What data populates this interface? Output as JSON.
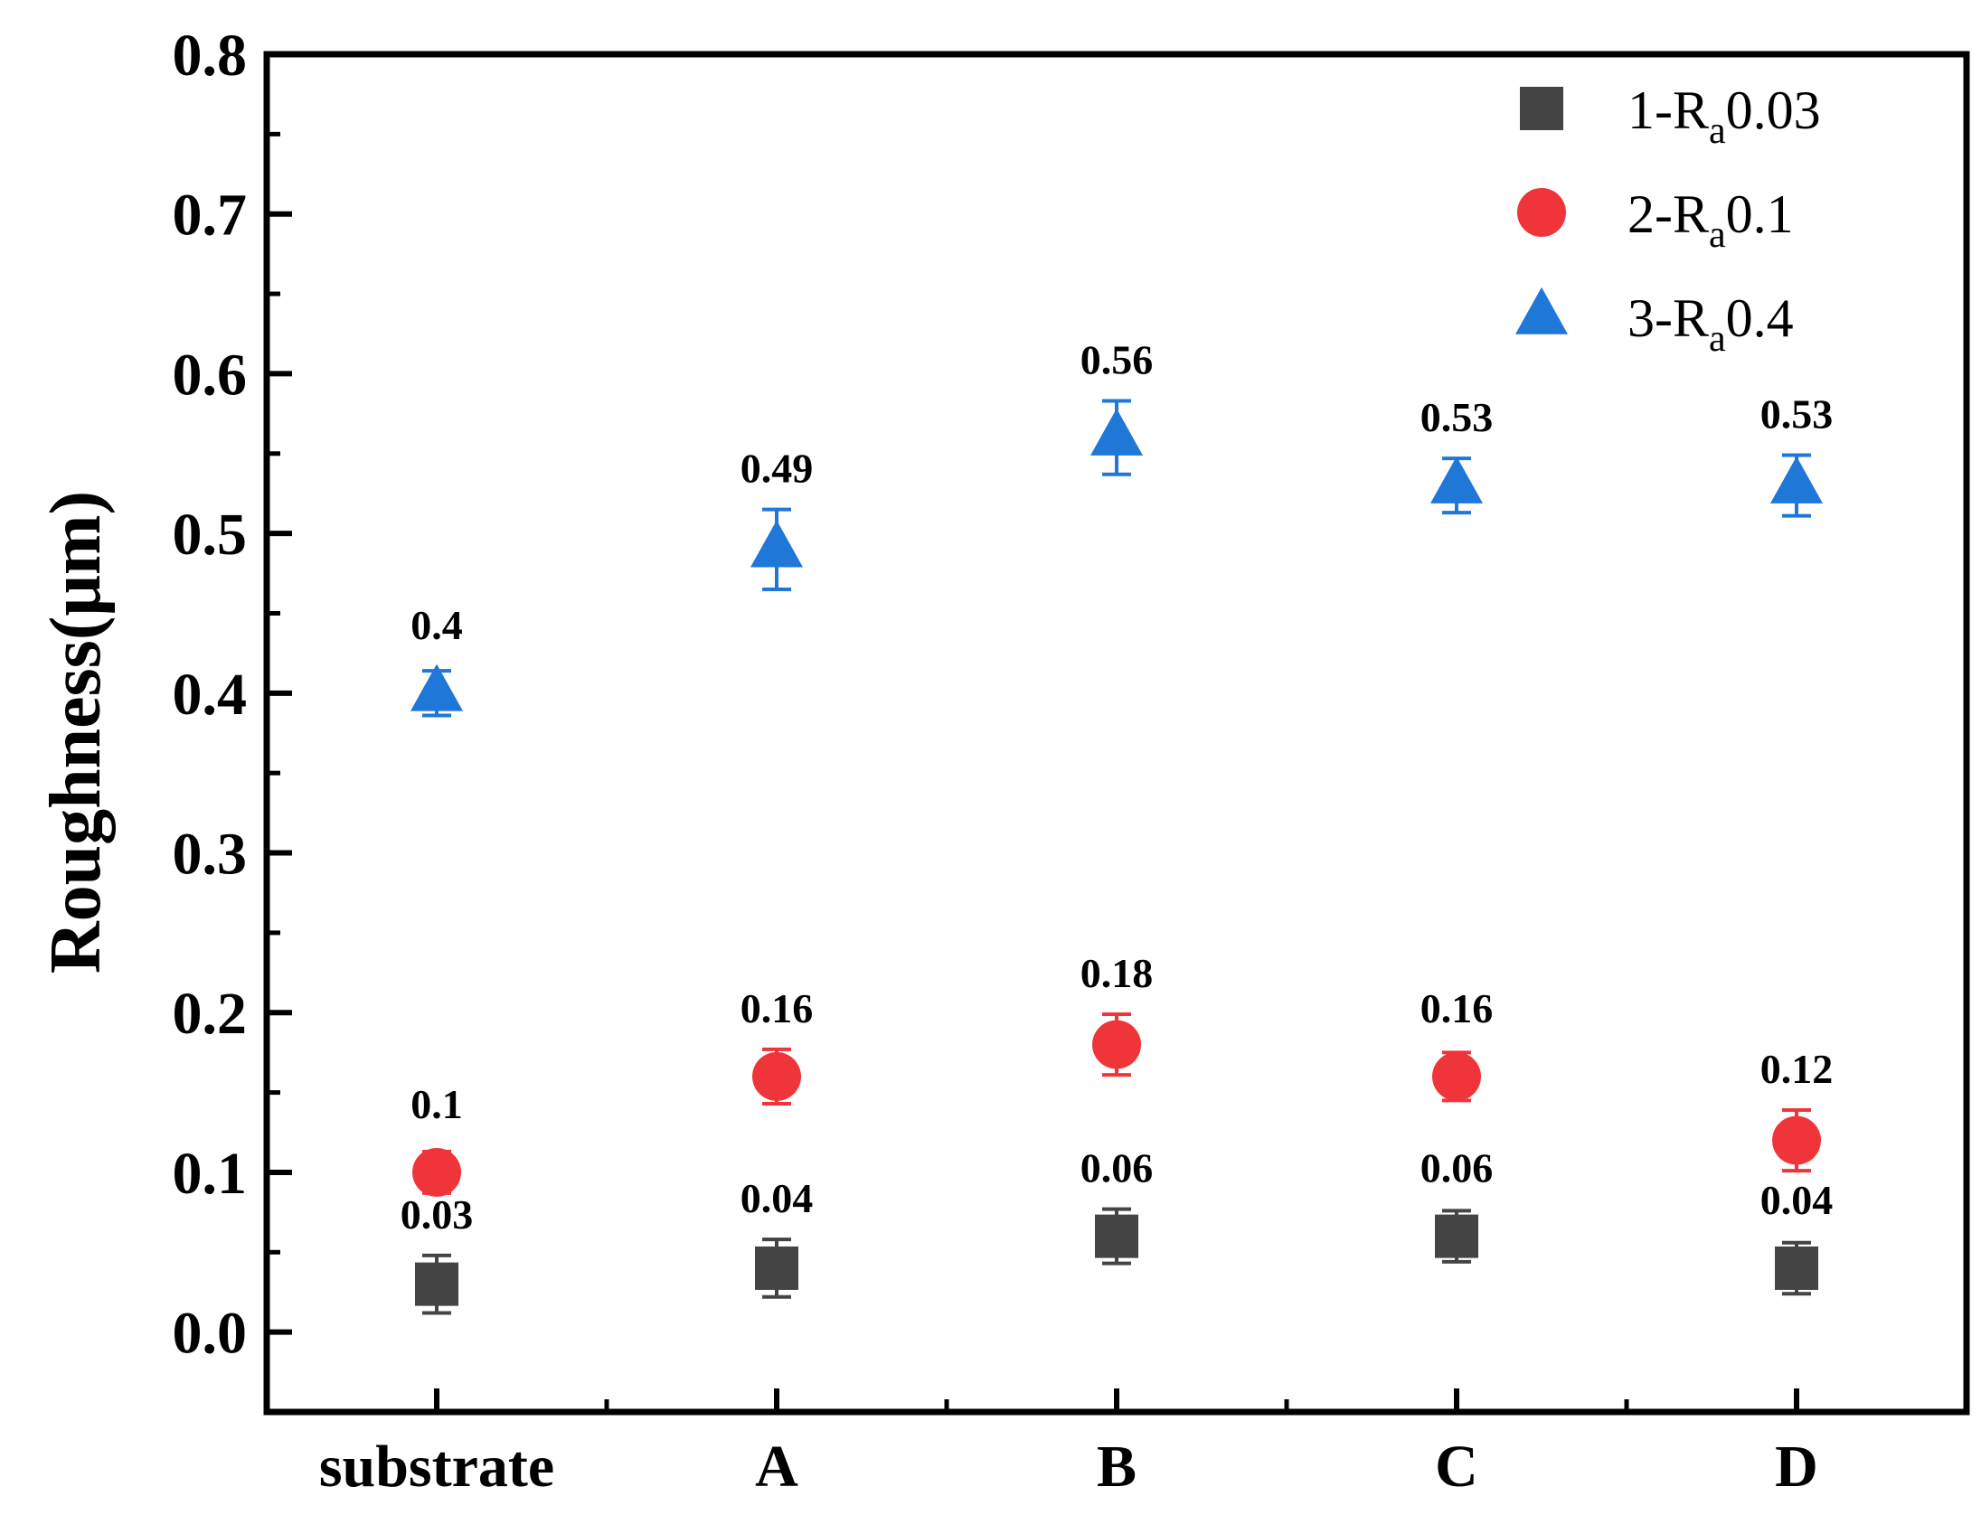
{
  "chart_data": {
    "type": "scatter",
    "title": "",
    "xlabel": "",
    "ylabel": "Roughness(μm)",
    "categories": [
      "substrate",
      "A",
      "B",
      "C",
      "D"
    ],
    "ylim": [
      -0.05,
      0.8
    ],
    "yticks": [
      "0.0",
      "0.1",
      "0.2",
      "0.3",
      "0.4",
      "0.5",
      "0.6",
      "0.7",
      "0.8"
    ],
    "grid": false,
    "legend_position": "top-right",
    "series": [
      {
        "name": "1-Ra0.03",
        "legend_prefix": "1-R",
        "legend_sub": "a",
        "legend_suffix": "0.03",
        "marker": "square",
        "color": "#444444",
        "values": [
          0.03,
          0.04,
          0.06,
          0.06,
          0.04
        ],
        "errors": [
          0.018,
          0.018,
          0.017,
          0.016,
          0.016
        ],
        "labels": [
          "0.03",
          "0.04",
          "0.06",
          "0.06",
          "0.04"
        ]
      },
      {
        "name": "2-Ra0.1",
        "legend_prefix": "2-R",
        "legend_sub": "a",
        "legend_suffix": "0.1",
        "marker": "circle",
        "color": "#f0353a",
        "values": [
          0.1,
          0.16,
          0.18,
          0.16,
          0.12
        ],
        "errors": [
          0.013,
          0.017,
          0.019,
          0.015,
          0.019
        ],
        "labels": [
          "0.1",
          "0.16",
          "0.18",
          "0.16",
          "0.12"
        ]
      },
      {
        "name": "3-Ra0.4",
        "legend_prefix": "3-R",
        "legend_sub": "a",
        "legend_suffix": "0.4",
        "marker": "triangle",
        "color": "#1f77d8",
        "values": [
          0.4,
          0.49,
          0.56,
          0.53,
          0.53
        ],
        "errors": [
          0.014,
          0.025,
          0.023,
          0.017,
          0.019
        ],
        "labels": [
          "0.4",
          "0.49",
          "0.56",
          "0.53",
          "0.53"
        ]
      }
    ]
  }
}
